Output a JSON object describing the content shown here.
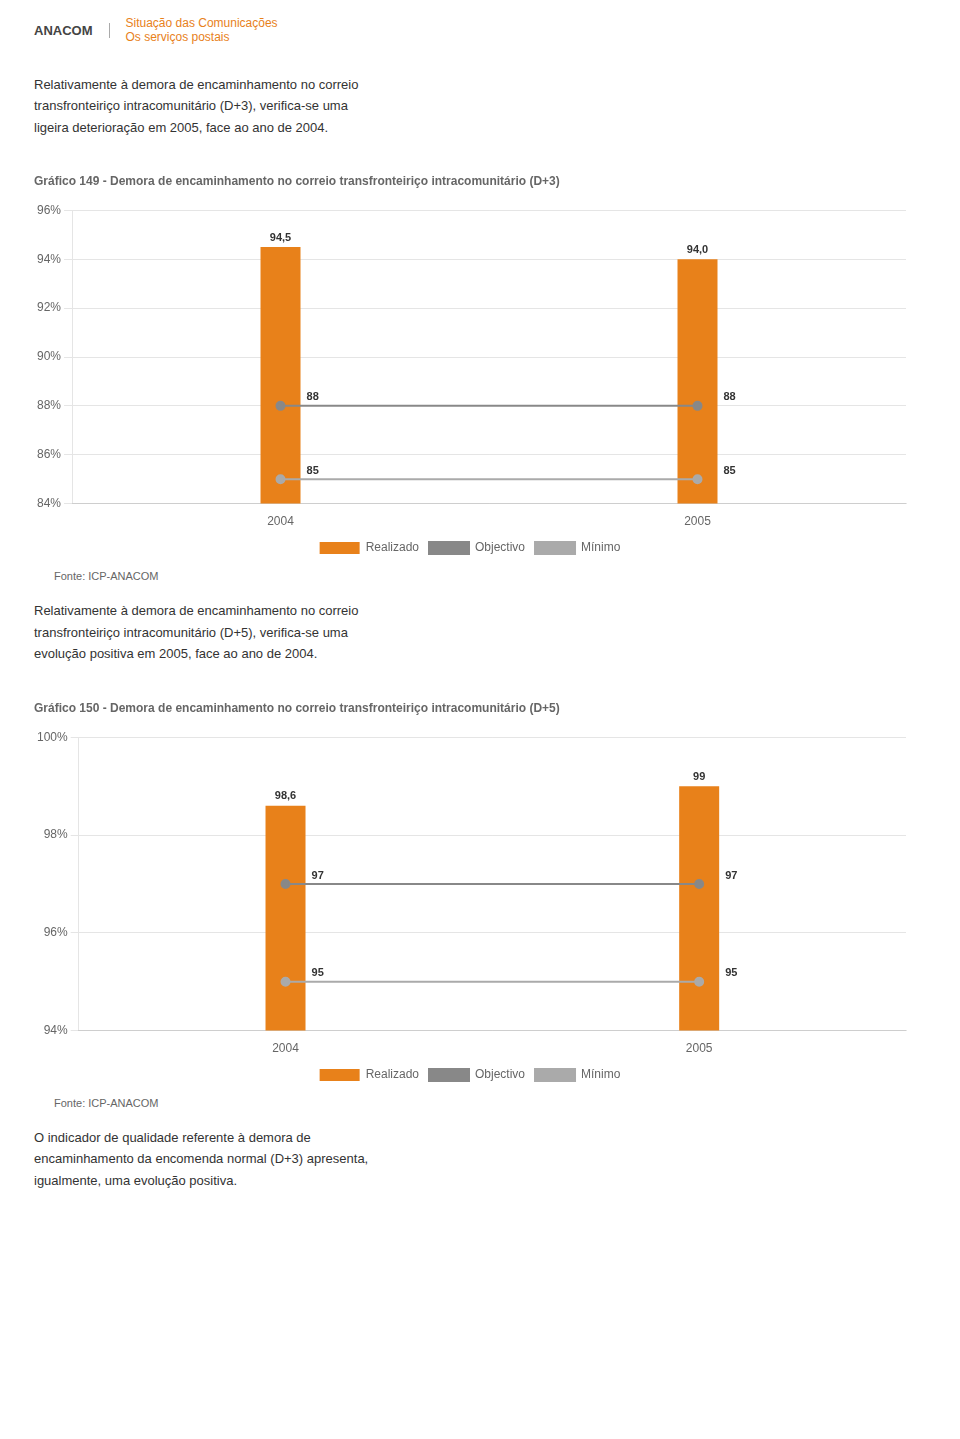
{
  "header": [
    "ANACOM",
    "Situação das Comunicações",
    "Os serviços postais"
  ],
  "paragraphs": [
    "Relativamente à demora de encaminhamento no correio\ntransfronteiriço intracomunitário (D+3), verifica-se uma\nligeira deterioração em 2005, face ao ano de 2004.",
    "Relativamente à demora de encaminhamento no correio\ntransfronteiriço intracomunitário (D+5), verifica-se uma\nevolução positiva em 2005, face ao ano de 2004.",
    "O indicador de qualidade referente à demora de\nencaminhamento da encomenda normal (D+3) apresenta,\nigualmente, uma evolução positiva."
  ],
  "chart_data": [
    {
      "type": "bar",
      "title": "Gráfico 149 - Demora de encaminhamento no correio transfronteiriço intracomunitário (D+3)",
      "categories": [
        "2004",
        "2005"
      ],
      "series": [
        {
          "name": "Realizado",
          "type": "bar",
          "color": "#E8811A",
          "values": [
            94.5,
            94.0
          ],
          "value_labels": [
            "94,5",
            "94,0"
          ]
        },
        {
          "name": "Objectivo",
          "type": "line",
          "color": "#888888",
          "marker": "circle",
          "values": [
            88,
            88
          ]
        },
        {
          "name": "Mínimo",
          "type": "line",
          "color": "#AAAAAA",
          "marker": "circle",
          "values": [
            85,
            85
          ]
        }
      ],
      "ylim": [
        84,
        96
      ],
      "yticks": [
        {
          "value": 84,
          "label": "84%"
        },
        {
          "value": 86,
          "label": "86%"
        },
        {
          "value": 88,
          "label": "88%"
        },
        {
          "value": 90,
          "label": "90%"
        },
        {
          "value": 92,
          "label": "92%"
        },
        {
          "value": 94,
          "label": "94%"
        },
        {
          "value": 96,
          "label": "96%"
        }
      ],
      "grid": true,
      "legend": "bottom",
      "data_labels": true,
      "annotations": [
        "Fonte: ICP-ANACOM"
      ]
    },
    {
      "type": "bar",
      "title": "Gráfico 150 - Demora de encaminhamento no correio transfronteiriço intracomunitário (D+5)",
      "categories": [
        "2004",
        "2005"
      ],
      "series": [
        {
          "name": "Realizado",
          "type": "bar",
          "color": "#E8811A",
          "values": [
            98.6,
            99.0
          ],
          "value_labels": [
            "98,6",
            "99"
          ]
        },
        {
          "name": "Objectivo",
          "type": "line",
          "color": "#888888",
          "marker": "circle",
          "values": [
            97,
            97
          ]
        },
        {
          "name": "Mínimo",
          "type": "line",
          "color": "#AAAAAA",
          "marker": "circle",
          "values": [
            95,
            95
          ]
        }
      ],
      "ylim": [
        94,
        100
      ],
      "yticks": [
        {
          "value": 94,
          "label": "94%"
        },
        {
          "value": 96,
          "label": "96%"
        },
        {
          "value": 98,
          "label": "98%"
        },
        {
          "value": 100,
          "label": "100%"
        }
      ],
      "grid": true,
      "legend": "bottom",
      "data_labels": true,
      "annotations": [
        "Fonte: ICP-ANACOM"
      ]
    }
  ]
}
